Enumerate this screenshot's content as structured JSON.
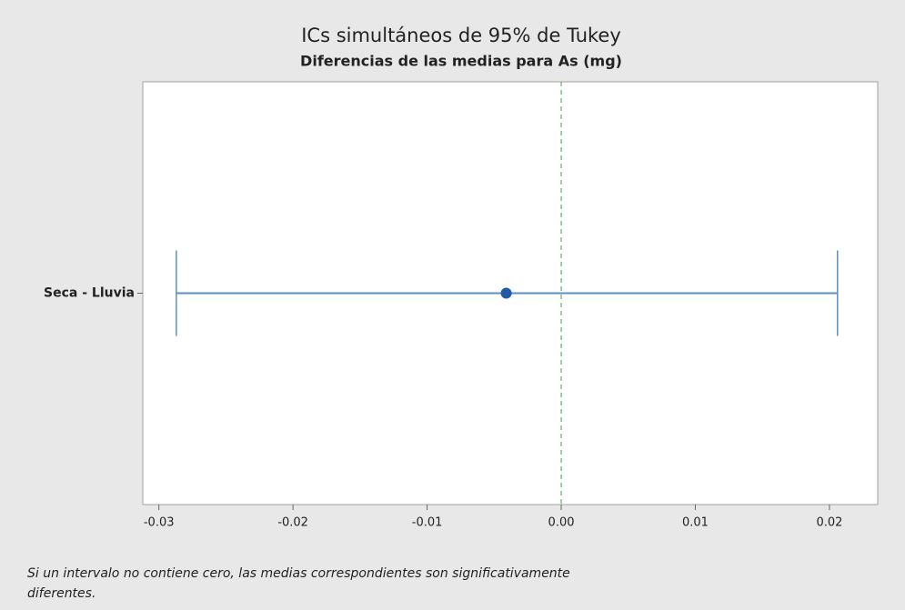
{
  "chart_data": {
    "type": "interval",
    "title": "ICs simultáneos de 95% de Tukey",
    "subtitle": "Diferencias de las medias para As (mg)",
    "categories": [
      "Seca - Lluvia"
    ],
    "values": [
      -0.0041
    ],
    "lower": [
      -0.0287
    ],
    "upper": [
      0.0206
    ],
    "color": "#5b8fc7",
    "point_color": "#1f5aa6",
    "reference_line": 0,
    "reference_color": "#3aa655",
    "xlim": [
      -0.0312,
      0.0236
    ],
    "xticks": [
      -0.03,
      -0.02,
      -0.01,
      {
        "value": 0,
        "label": "0.00"
      },
      0.01,
      0.02
    ],
    "footnote": "Si un intervalo no contiene cero, las medias correspondientes son significativamente diferentes."
  }
}
